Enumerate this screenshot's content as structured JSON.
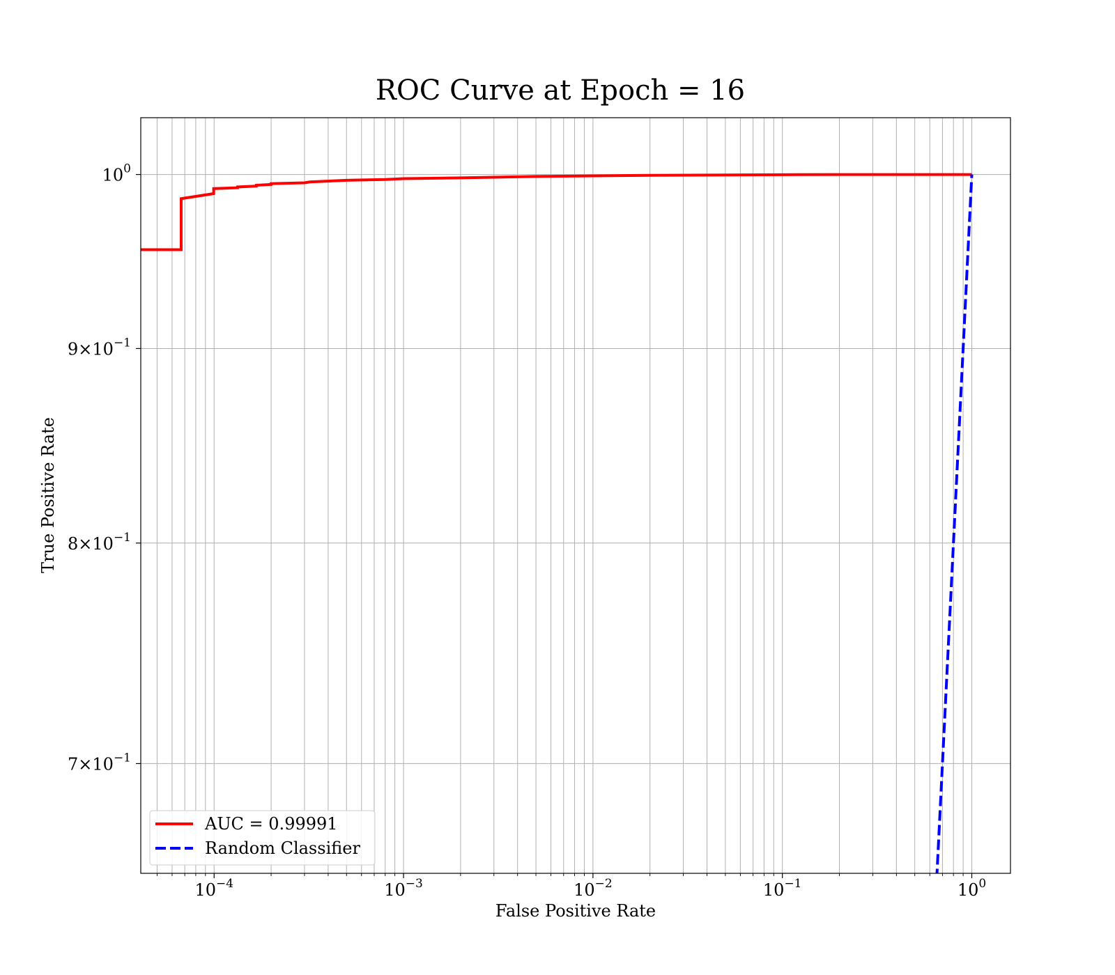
{
  "chart_data": {
    "type": "line",
    "title": "ROC Curve at Epoch = 16",
    "xlabel": "False Positive Rate",
    "ylabel": "True Positive Rate",
    "xscale": "log",
    "yscale": "log",
    "xlim": [
      4.1e-05,
      1.6
    ],
    "ylim": [
      0.655,
      1.035
    ],
    "grid": "both-major-minor",
    "legend_position": "lower-left",
    "x_ticks": [
      {
        "value": 0.0001,
        "mantissa": "",
        "base": "10",
        "exp": "−4"
      },
      {
        "value": 0.001,
        "mantissa": "",
        "base": "10",
        "exp": "−3"
      },
      {
        "value": 0.01,
        "mantissa": "",
        "base": "10",
        "exp": "−2"
      },
      {
        "value": 0.1,
        "mantissa": "",
        "base": "10",
        "exp": "−1"
      },
      {
        "value": 1,
        "mantissa": "",
        "base": "10",
        "exp": "0"
      }
    ],
    "y_ticks": [
      {
        "value": 1.0,
        "mantissa": "",
        "base": "10",
        "exp": "0"
      },
      {
        "value": 0.9,
        "mantissa": "9×",
        "base": "10",
        "exp": "−1"
      },
      {
        "value": 0.8,
        "mantissa": "8×",
        "base": "10",
        "exp": "−1"
      },
      {
        "value": 0.7,
        "mantissa": "7×",
        "base": "10",
        "exp": "−1"
      }
    ],
    "series": [
      {
        "name": "AUC = 0.99991",
        "color": "#ff0000",
        "style": "solid",
        "x": [
          4.1e-05,
          6.7e-05,
          6.7e-05,
          9.95e-05,
          9.95e-05,
          0.000133,
          0.000133,
          0.000167,
          0.000167,
          0.0002,
          0.0002,
          0.0003,
          0.00032,
          0.0005,
          0.0008,
          0.001,
          0.002,
          0.005,
          0.01,
          0.02,
          0.05,
          0.1,
          0.2,
          0.5,
          1.0
        ],
        "y": [
          0.9555,
          0.9555,
          0.9855,
          0.9885,
          0.9915,
          0.992,
          0.9925,
          0.993,
          0.9935,
          0.994,
          0.9945,
          0.995,
          0.9955,
          0.9965,
          0.997,
          0.9975,
          0.998,
          0.9988,
          0.9992,
          0.9995,
          0.9997,
          0.9999,
          1.0,
          1.0,
          1.0
        ]
      },
      {
        "name": "Random Classifier",
        "color": "#0000ff",
        "style": "dashed",
        "x": [
          0.63,
          0.7,
          0.8,
          0.9,
          1.0
        ],
        "y": [
          0.63,
          0.7,
          0.8,
          0.9,
          1.0
        ]
      }
    ]
  }
}
